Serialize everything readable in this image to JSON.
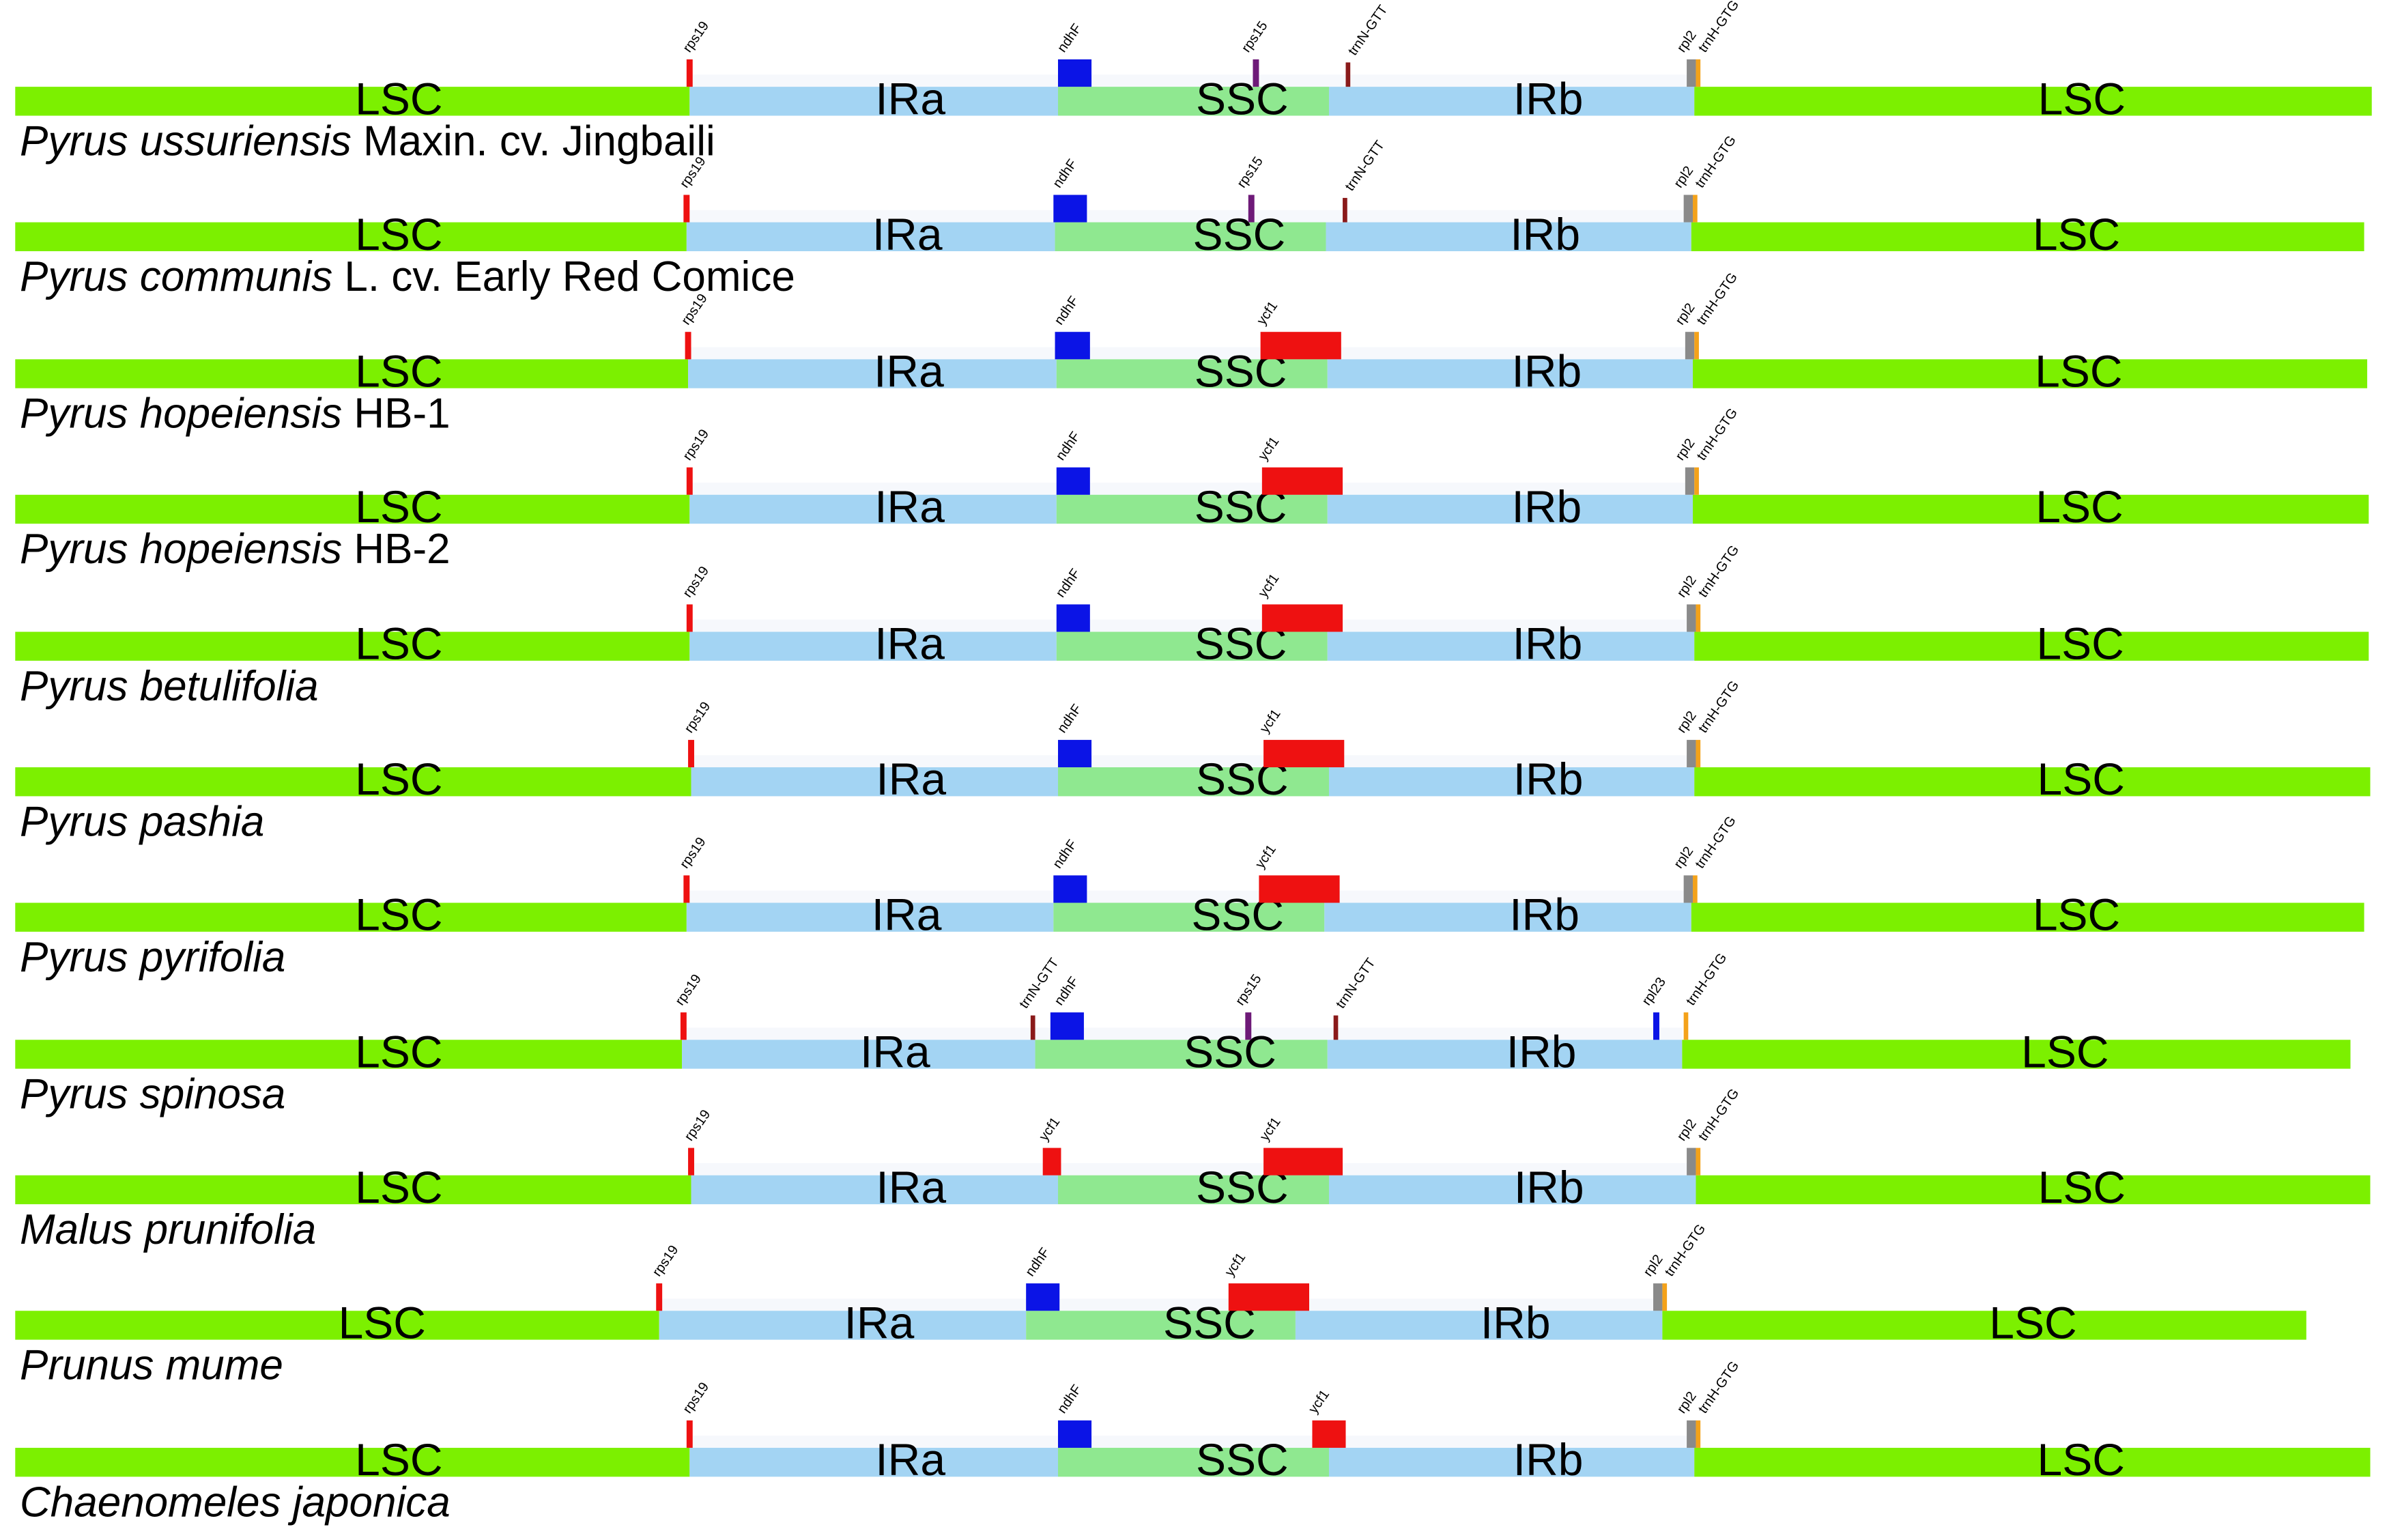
{
  "colors": {
    "LSC": "#7cf000",
    "IRa": "#a3d4f3",
    "SSC": "#8fe890",
    "IRb": "#a3d4f3",
    "backdrop": "#f6f8fc",
    "gene_red": "#ee1111",
    "gene_blue": "#0b14e6",
    "gene_purple": "#6e1a78",
    "gene_darkred": "#8a1a1a",
    "gene_gray": "#8a8a8a",
    "gene_orange": "#f4a21a"
  },
  "region_labels": {
    "LSC": "LSC",
    "IRa": "IRa",
    "SSC": "SSC",
    "IRb": "IRb"
  },
  "tracks": [
    {
      "species_italic": "Pyrus ussuriensis",
      "species_rest": " Maxin. cv. Jingbaili",
      "genes": [
        {
          "label": "rps19",
          "type": "red",
          "region_edge": "LSC-IRa"
        },
        {
          "label": "ndhF",
          "type": "blue",
          "region_edge": "IRa-SSC"
        },
        {
          "label": "rps15",
          "type": "purple",
          "region_edge": "SSC"
        },
        {
          "label": "trnN-GTT",
          "type": "darkred",
          "region_edge": "SSC-IRb"
        },
        {
          "label": "rpl2",
          "type": "gray",
          "region_edge": "IRb-LSC"
        },
        {
          "label": "trnH-GTG",
          "type": "orange",
          "region_edge": "IRb-LSC"
        }
      ]
    },
    {
      "species_italic": "Pyrus communis",
      "species_rest": " L. cv. Early Red Comice",
      "genes": [
        {
          "label": "rps19",
          "type": "red"
        },
        {
          "label": "ndhF",
          "type": "blue"
        },
        {
          "label": "rps15",
          "type": "purple"
        },
        {
          "label": "trnN-GTT",
          "type": "darkred"
        },
        {
          "label": "rpl2",
          "type": "gray"
        },
        {
          "label": "trnH-GTG",
          "type": "orange"
        }
      ]
    },
    {
      "species_italic": "Pyrus hopeiensis",
      "species_rest": " HB-1",
      "genes": [
        {
          "label": "rps19",
          "type": "red"
        },
        {
          "label": "ndhF",
          "type": "blue"
        },
        {
          "label": "ycf1",
          "type": "red"
        },
        {
          "label": "rpl2",
          "type": "gray"
        },
        {
          "label": "trnH-GTG",
          "type": "orange"
        }
      ]
    },
    {
      "species_italic": "Pyrus hopeiensis",
      "species_rest": " HB-2",
      "genes": [
        {
          "label": "rps19",
          "type": "red"
        },
        {
          "label": "ndhF",
          "type": "blue"
        },
        {
          "label": "ycf1",
          "type": "red"
        },
        {
          "label": "rpl2",
          "type": "gray"
        },
        {
          "label": "trnH-GTG",
          "type": "orange"
        }
      ]
    },
    {
      "species_italic": "Pyrus betulifolia",
      "species_rest": "",
      "genes": [
        {
          "label": "rps19",
          "type": "red"
        },
        {
          "label": "ndhF",
          "type": "blue"
        },
        {
          "label": "ycf1",
          "type": "red"
        },
        {
          "label": "rpl2",
          "type": "gray"
        },
        {
          "label": "trnH-GTG",
          "type": "orange"
        }
      ]
    },
    {
      "species_italic": "Pyrus pashia",
      "species_rest": "",
      "genes": [
        {
          "label": "rps19",
          "type": "red"
        },
        {
          "label": "ndhF",
          "type": "blue"
        },
        {
          "label": "ycf1",
          "type": "red"
        },
        {
          "label": "rpl2",
          "type": "gray"
        },
        {
          "label": "trnH-GTG",
          "type": "orange"
        }
      ]
    },
    {
      "species_italic": "Pyrus pyrifolia",
      "species_rest": "",
      "genes": [
        {
          "label": "rps19",
          "type": "red"
        },
        {
          "label": "ndhF",
          "type": "blue"
        },
        {
          "label": "ycf1",
          "type": "red"
        },
        {
          "label": "rpl2",
          "type": "gray"
        },
        {
          "label": "trnH-GTG",
          "type": "orange"
        }
      ]
    },
    {
      "species_italic": "Pyrus spinosa",
      "species_rest": "",
      "genes": [
        {
          "label": "rps19",
          "type": "red"
        },
        {
          "label": "trnN-GTT",
          "type": "darkred"
        },
        {
          "label": "ndhF",
          "type": "blue"
        },
        {
          "label": "rps15",
          "type": "purple"
        },
        {
          "label": "trnN-GTT",
          "type": "darkred"
        },
        {
          "label": "rpl23",
          "type": "blue"
        },
        {
          "label": "trnH-GTG",
          "type": "orange"
        }
      ]
    },
    {
      "species_italic": "Malus prunifolia",
      "species_rest": "",
      "genes": [
        {
          "label": "rps19",
          "type": "red"
        },
        {
          "label": "ycf1",
          "type": "red"
        },
        {
          "label": "ycf1",
          "type": "red"
        },
        {
          "label": "rpl2",
          "type": "gray"
        },
        {
          "label": "trnH-GTG",
          "type": "orange"
        }
      ]
    },
    {
      "species_italic": "Prunus mume",
      "species_rest": "",
      "genes": [
        {
          "label": "rps19",
          "type": "red"
        },
        {
          "label": "ndhF",
          "type": "blue"
        },
        {
          "label": "ycf1",
          "type": "red"
        },
        {
          "label": "rpl2",
          "type": "gray"
        },
        {
          "label": "trnH-GTG",
          "type": "orange"
        }
      ]
    },
    {
      "species_italic": "Chaenomeles japonica",
      "species_rest": "",
      "genes": [
        {
          "label": "rps19",
          "type": "red"
        },
        {
          "label": "ndhF",
          "type": "blue"
        },
        {
          "label": "ycf1",
          "type": "red"
        },
        {
          "label": "rpl2",
          "type": "gray"
        },
        {
          "label": "trnH-GTG",
          "type": "orange"
        }
      ]
    }
  ]
}
